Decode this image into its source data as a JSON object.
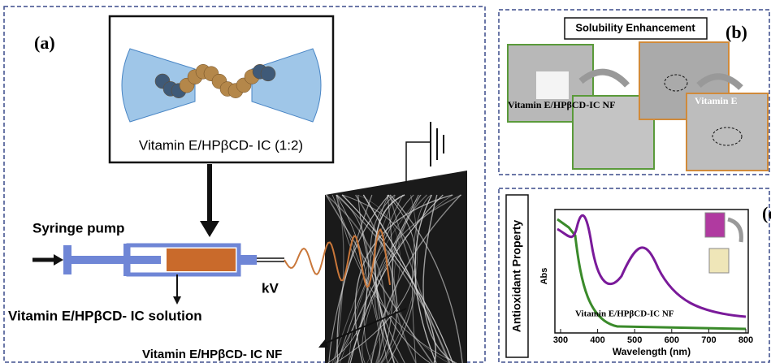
{
  "panel_a": {
    "label": "(a)",
    "complex_label": "Vitamin E/HPβCD- IC (1:2)",
    "pump_label": "Syringe pump",
    "solution_label": "Vitamin E/HPβCD- IC solution",
    "voltage_label": "kV",
    "nanofiber_label": "Vitamin E/HPβCD- IC NF"
  },
  "panel_b": {
    "label": "(b)",
    "title": "Solubility Enhancement",
    "sample_label": "Vitamin E/HPβCD-IC NF",
    "control_label": "Vitamin E"
  },
  "panel_c": {
    "label": "(c)",
    "title": "Antioxidant Property",
    "y_axis_label": "Abs",
    "x_axis_label": "Wavelength (nm)",
    "x_tick_labels": [
      "300",
      "400",
      "500",
      "600",
      "700",
      "800"
    ],
    "curve_label": "Vitamin E/HPβCD-IC NF"
  }
}
